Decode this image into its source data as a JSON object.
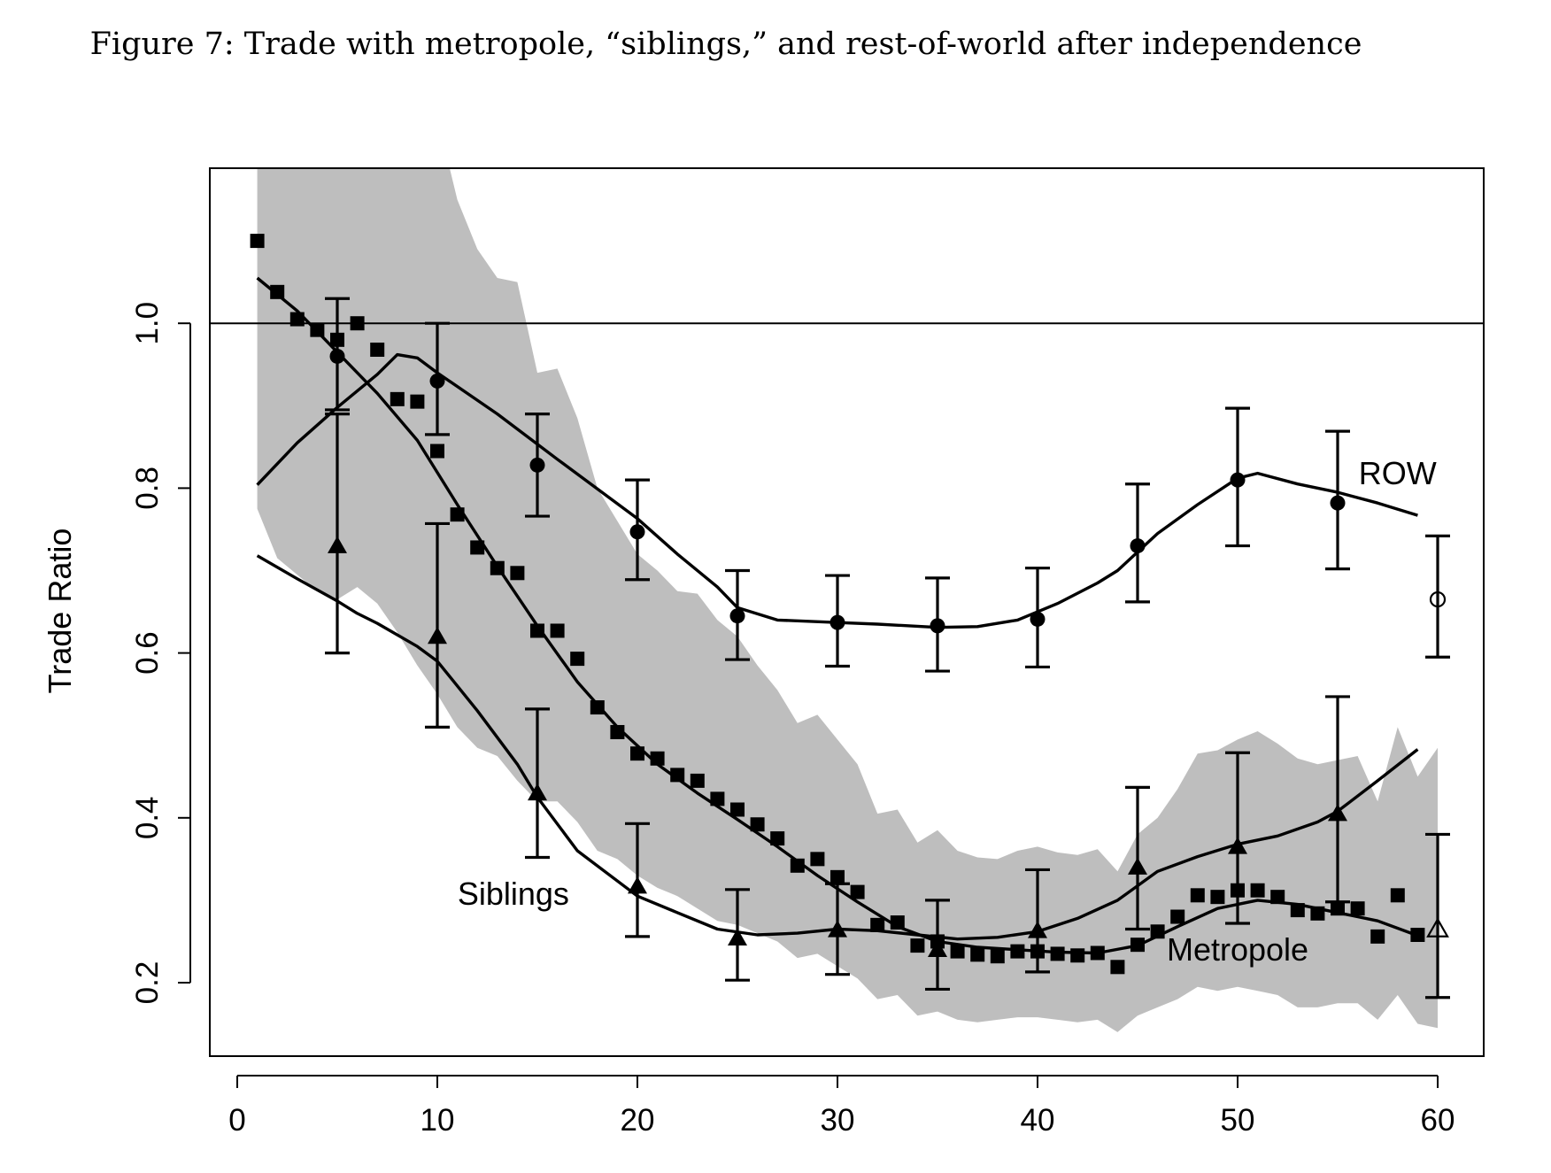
{
  "figure": {
    "caption": "Figure 7: Trade with metropole, “siblings,” and rest-of-world after independence"
  },
  "colors": {
    "band": "#bebebe",
    "ink": "#000000"
  },
  "chart_data": {
    "type": "line",
    "ylabel": "Trade Ratio",
    "xlabel": "",
    "xlim": [
      -7,
      62.5
    ],
    "ylim": [
      0.12,
      1.2
    ],
    "x_ticks": [
      0,
      10,
      20,
      30,
      40,
      50,
      60
    ],
    "y_ticks": [
      0.2,
      0.4,
      0.6,
      0.8,
      1.0
    ],
    "y_tick_labels": [
      "0.2",
      "0.4",
      "0.6",
      "0.8",
      "1.0"
    ],
    "reference_line": 1.0,
    "annotations": [
      {
        "text": "ROW",
        "x": 58,
        "y": 0.815
      },
      {
        "text": "Siblings",
        "x": 13.8,
        "y": 0.305
      },
      {
        "text": "Metropole",
        "x": 50,
        "y": 0.237
      }
    ],
    "band": {
      "name": "confidence band",
      "x": [
        1,
        2,
        3,
        4,
        5,
        6,
        7,
        8,
        9,
        10,
        11,
        12,
        13,
        14,
        15,
        16,
        17,
        18,
        19,
        20,
        21,
        22,
        23,
        24,
        25,
        26,
        27,
        28,
        29,
        30,
        31,
        32,
        33,
        34,
        35,
        36,
        37,
        38,
        39,
        40,
        41,
        42,
        43,
        44,
        45,
        46,
        47,
        48,
        49,
        50,
        51,
        52,
        53,
        54,
        55,
        56,
        57,
        58,
        59,
        60
      ],
      "upper": [
        1.25,
        1.25,
        1.25,
        1.25,
        1.25,
        1.25,
        1.25,
        1.25,
        1.25,
        1.25,
        1.15,
        1.09,
        1.055,
        1.05,
        0.94,
        0.945,
        0.885,
        0.8,
        0.76,
        0.72,
        0.7,
        0.675,
        0.672,
        0.64,
        0.62,
        0.585,
        0.555,
        0.515,
        0.525,
        0.495,
        0.465,
        0.405,
        0.41,
        0.37,
        0.385,
        0.36,
        0.352,
        0.35,
        0.36,
        0.365,
        0.358,
        0.355,
        0.362,
        0.335,
        0.38,
        0.4,
        0.435,
        0.478,
        0.482,
        0.495,
        0.505,
        0.49,
        0.472,
        0.465,
        0.47,
        0.475,
        0.42,
        0.51,
        0.45,
        0.485
      ],
      "lower": [
        0.775,
        0.715,
        0.695,
        0.675,
        0.665,
        0.68,
        0.66,
        0.625,
        0.585,
        0.55,
        0.51,
        0.485,
        0.475,
        0.445,
        0.42,
        0.42,
        0.395,
        0.36,
        0.35,
        0.33,
        0.315,
        0.305,
        0.29,
        0.275,
        0.27,
        0.26,
        0.25,
        0.23,
        0.235,
        0.22,
        0.205,
        0.18,
        0.185,
        0.16,
        0.165,
        0.155,
        0.152,
        0.155,
        0.158,
        0.158,
        0.155,
        0.152,
        0.155,
        0.14,
        0.16,
        0.17,
        0.18,
        0.195,
        0.19,
        0.195,
        0.19,
        0.185,
        0.17,
        0.17,
        0.175,
        0.175,
        0.155,
        0.185,
        0.15,
        0.145
      ]
    },
    "series": [
      {
        "name": "ROW",
        "marker": "circle",
        "points_x": [
          5,
          10,
          15,
          20,
          25,
          30,
          35,
          40,
          45,
          50,
          55
        ],
        "points_y": [
          0.96,
          0.93,
          0.828,
          0.747,
          0.645,
          0.637,
          0.633,
          0.641,
          0.73,
          0.81,
          0.782
        ],
        "err_low": [
          0.895,
          0.865,
          0.766,
          0.689,
          0.592,
          0.584,
          0.578,
          0.583,
          0.662,
          0.73,
          0.702
        ],
        "err_high": [
          1.03,
          1.0,
          0.89,
          0.81,
          0.7,
          0.694,
          0.691,
          0.703,
          0.805,
          0.897,
          0.869
        ],
        "smooth_x": [
          1,
          3,
          5,
          7,
          8,
          9,
          10,
          13,
          16,
          20,
          22,
          24,
          25,
          27,
          30,
          32,
          35,
          37,
          39,
          41,
          43,
          44,
          46,
          48,
          50,
          51,
          53,
          55,
          57,
          59
        ],
        "smooth_y": [
          0.804,
          0.855,
          0.898,
          0.938,
          0.962,
          0.958,
          0.94,
          0.89,
          0.835,
          0.763,
          0.72,
          0.68,
          0.655,
          0.64,
          0.637,
          0.635,
          0.631,
          0.632,
          0.64,
          0.66,
          0.685,
          0.7,
          0.745,
          0.78,
          0.812,
          0.818,
          0.805,
          0.795,
          0.782,
          0.767
        ],
        "extra_point": {
          "x": 60,
          "y": 0.665,
          "low": 0.595,
          "high": 0.742,
          "marker": "open-circle"
        }
      },
      {
        "name": "Siblings",
        "marker": "triangle",
        "points_x": [
          5,
          10,
          15,
          20,
          25,
          30,
          35,
          40,
          45,
          50,
          55
        ],
        "points_y": [
          0.73,
          0.62,
          0.43,
          0.317,
          0.254,
          0.264,
          0.24,
          0.263,
          0.34,
          0.365,
          0.405
        ],
        "err_low": [
          0.6,
          0.51,
          0.352,
          0.256,
          0.203,
          0.21,
          0.192,
          0.213,
          0.265,
          0.272,
          0.298
        ],
        "err_high": [
          0.89,
          0.757,
          0.532,
          0.393,
          0.313,
          0.32,
          0.3,
          0.337,
          0.437,
          0.479,
          0.547
        ],
        "smooth_x": [
          1,
          3,
          5,
          6,
          7,
          9,
          10,
          12,
          14,
          15,
          17,
          20,
          22,
          24,
          26,
          28,
          30,
          32,
          34,
          36,
          38,
          40,
          42,
          44,
          46,
          48,
          50,
          52,
          54,
          55,
          57,
          59
        ],
        "smooth_y": [
          0.718,
          0.69,
          0.663,
          0.648,
          0.636,
          0.608,
          0.59,
          0.53,
          0.465,
          0.425,
          0.36,
          0.305,
          0.285,
          0.265,
          0.258,
          0.26,
          0.265,
          0.263,
          0.258,
          0.253,
          0.255,
          0.262,
          0.278,
          0.3,
          0.335,
          0.353,
          0.368,
          0.378,
          0.395,
          0.408,
          0.445,
          0.483
        ],
        "extra_point": {
          "x": 60,
          "y": 0.265,
          "low": 0.182,
          "high": 0.38,
          "marker": "open-triangle"
        }
      },
      {
        "name": "Metropole",
        "marker": "square",
        "points_x": [
          1,
          2,
          3,
          4,
          5,
          6,
          7,
          8,
          9,
          10,
          11,
          12,
          13,
          14,
          15,
          16,
          17,
          18,
          19,
          20,
          21,
          22,
          23,
          24,
          25,
          26,
          27,
          28,
          29,
          30,
          31,
          32,
          33,
          34,
          35,
          36,
          37,
          38,
          39,
          40,
          41,
          42,
          43,
          44,
          45,
          46,
          47,
          48,
          49,
          50,
          51,
          52,
          53,
          54,
          55,
          56,
          57,
          58,
          59
        ],
        "points_y": [
          1.1,
          1.038,
          1.005,
          0.992,
          0.98,
          1.0,
          0.968,
          0.908,
          0.905,
          0.845,
          0.768,
          0.728,
          0.703,
          0.697,
          0.627,
          0.627,
          0.593,
          0.534,
          0.504,
          0.478,
          0.472,
          0.452,
          0.445,
          0.423,
          0.41,
          0.392,
          0.375,
          0.342,
          0.35,
          0.328,
          0.31,
          0.27,
          0.273,
          0.245,
          0.25,
          0.238,
          0.234,
          0.232,
          0.238,
          0.238,
          0.235,
          0.233,
          0.236,
          0.219,
          0.246,
          0.262,
          0.28,
          0.306,
          0.304,
          0.312,
          0.312,
          0.304,
          0.288,
          0.284,
          0.29,
          0.29,
          0.256,
          0.306,
          0.258
        ],
        "smooth_x": [
          1,
          3,
          5,
          7,
          9,
          11,
          13,
          15,
          17,
          19,
          21,
          23,
          25,
          27,
          29,
          31,
          33,
          35,
          37,
          39,
          41,
          43,
          45,
          47,
          49,
          51,
          53,
          55,
          57,
          59
        ],
        "smooth_y": [
          1.055,
          1.015,
          0.965,
          0.915,
          0.858,
          0.78,
          0.705,
          0.633,
          0.565,
          0.51,
          0.465,
          0.43,
          0.398,
          0.365,
          0.33,
          0.298,
          0.268,
          0.25,
          0.243,
          0.24,
          0.237,
          0.236,
          0.245,
          0.268,
          0.29,
          0.3,
          0.295,
          0.285,
          0.275,
          0.257
        ]
      }
    ]
  }
}
